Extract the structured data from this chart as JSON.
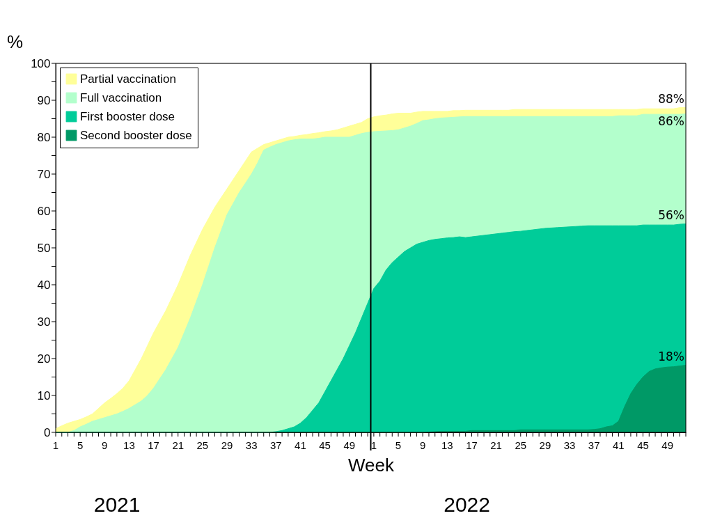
{
  "chart_data": {
    "type": "area",
    "xlabel": "Week",
    "ylabel": "%",
    "categories": [
      "1",
      null,
      null,
      null,
      "5",
      null,
      null,
      null,
      "9",
      null,
      null,
      null,
      "13",
      null,
      null,
      null,
      "17",
      null,
      null,
      null,
      "21",
      null,
      null,
      null,
      "25",
      null,
      null,
      null,
      "29",
      null,
      null,
      null,
      "33",
      null,
      null,
      null,
      "37",
      null,
      null,
      null,
      "41",
      null,
      null,
      null,
      "45",
      null,
      null,
      null,
      "49",
      null,
      null,
      null,
      "1",
      null,
      null,
      null,
      "5",
      null,
      null,
      null,
      "9",
      null,
      null,
      null,
      "13",
      null,
      null,
      null,
      "17",
      null,
      null,
      null,
      "21",
      null,
      null,
      null,
      "25",
      null,
      null,
      null,
      "29",
      null,
      null,
      null,
      "33",
      null,
      null,
      null,
      "37",
      null,
      null,
      null,
      "41",
      null,
      null,
      null,
      "45",
      null,
      null,
      null,
      "49",
      null,
      null,
      null
    ],
    "series": [
      {
        "name": "Partial vaccination",
        "color": "#ffff99",
        "values": [
          1,
          1.8,
          2.5,
          3,
          3.5,
          4.2,
          5,
          6.5,
          8,
          9.2,
          10.5,
          12,
          14,
          17,
          20,
          23.5,
          27,
          30,
          33,
          36.5,
          40,
          44,
          48,
          51.5,
          55,
          58,
          61,
          63.5,
          66,
          68.5,
          71,
          73.5,
          76,
          77,
          78,
          78.5,
          79,
          79.5,
          80,
          80.2,
          80.5,
          80.7,
          81,
          81.2,
          81.5,
          81.7,
          82,
          82.5,
          83,
          83.5,
          84,
          85,
          85.5,
          85.8,
          86,
          86.3,
          86.5,
          86.5,
          86.5,
          86.8,
          87,
          87,
          87,
          87,
          87,
          87.2,
          87.2,
          87.3,
          87.3,
          87.3,
          87.3,
          87.3,
          87.3,
          87.3,
          87.3,
          87.5,
          87.5,
          87.5,
          87.5,
          87.5,
          87.5,
          87.5,
          87.5,
          87.5,
          87.5,
          87.5,
          87.5,
          87.5,
          87.5,
          87.5,
          87.5,
          87.5,
          87.5,
          87.5,
          87.5,
          87.5,
          87.7,
          87.7,
          87.7,
          87.7,
          87.7,
          87.7,
          88,
          88
        ]
      },
      {
        "name": "Full vaccination",
        "color": "#b3ffcc",
        "values": [
          0,
          0,
          0,
          0.5,
          1.5,
          2.2,
          3,
          3.5,
          4,
          4.5,
          5,
          5.7,
          6.5,
          7.5,
          8.5,
          10,
          12,
          14.5,
          17,
          20,
          23,
          27,
          31,
          35.5,
          40,
          45,
          50,
          54.5,
          59,
          62,
          65,
          67.5,
          70,
          73,
          76.5,
          77.3,
          78,
          78.5,
          79,
          79.3,
          79.5,
          79.5,
          79.5,
          79.7,
          80,
          80,
          80,
          80,
          80,
          80.5,
          81,
          81.3,
          81.5,
          81.6,
          81.7,
          81.8,
          82,
          82.5,
          83,
          83.7,
          84.5,
          84.7,
          85,
          85.2,
          85.3,
          85.4,
          85.5,
          85.6,
          85.6,
          85.6,
          85.6,
          85.6,
          85.6,
          85.6,
          85.6,
          85.6,
          85.6,
          85.6,
          85.6,
          85.6,
          85.6,
          85.6,
          85.6,
          85.6,
          85.6,
          85.6,
          85.6,
          85.6,
          85.6,
          85.6,
          85.6,
          85.6,
          85.8,
          85.8,
          85.8,
          85.8,
          86.2,
          86.2,
          86.2,
          86.2,
          86.2,
          86.2,
          86.2,
          86.3
        ]
      },
      {
        "name": "First booster dose",
        "color": "#00cc99",
        "values": [
          0,
          0,
          0,
          0,
          0,
          0,
          0,
          0,
          0,
          0,
          0,
          0,
          0,
          0,
          0,
          0,
          0,
          0,
          0,
          0,
          0,
          0,
          0,
          0,
          0,
          0,
          0,
          0,
          0,
          0,
          0,
          0,
          0,
          0,
          0,
          0,
          0.2,
          0.5,
          1,
          1.5,
          2.5,
          4,
          6,
          8,
          11,
          14,
          17,
          20,
          23.5,
          27,
          31,
          35,
          39,
          41,
          44,
          46,
          47.5,
          49,
          50,
          51,
          51.5,
          52,
          52.3,
          52.5,
          52.7,
          52.8,
          53,
          52.8,
          53,
          53.2,
          53.4,
          53.6,
          53.8,
          54,
          54.2,
          54.4,
          54.5,
          54.7,
          54.9,
          55.1,
          55.3,
          55.4,
          55.5,
          55.6,
          55.7,
          55.8,
          55.9,
          56,
          56,
          56,
          56,
          56,
          56,
          56,
          56,
          56,
          56.2,
          56.2,
          56.2,
          56.2,
          56.2,
          56.2,
          56.4,
          56.5
        ]
      },
      {
        "name": "Second booster dose",
        "color": "#009966",
        "values": [
          0,
          0,
          0,
          0,
          0,
          0,
          0,
          0,
          0,
          0,
          0,
          0,
          0,
          0,
          0,
          0,
          0,
          0,
          0,
          0,
          0,
          0,
          0,
          0,
          0,
          0,
          0,
          0,
          0,
          0,
          0,
          0,
          0,
          0,
          0,
          0,
          0,
          0,
          0,
          0,
          0,
          0,
          0,
          0,
          0,
          0,
          0,
          0,
          0,
          0,
          0,
          0,
          0,
          0,
          0,
          0,
          0,
          0,
          0,
          0,
          0,
          0.1,
          0.2,
          0.3,
          0.3,
          0.3,
          0.3,
          0.3,
          0.5,
          0.5,
          0.5,
          0.5,
          0.5,
          0.5,
          0.5,
          0.5,
          0.7,
          0.7,
          0.7,
          0.7,
          0.7,
          0.7,
          0.7,
          0.7,
          0.7,
          0.7,
          0.7,
          0.7,
          0.8,
          1,
          1.5,
          1.8,
          3,
          7,
          10.5,
          13,
          15,
          16.5,
          17.2,
          17.5,
          17.7,
          17.8,
          18,
          18.2
        ]
      }
    ],
    "ylim": [
      0,
      100
    ],
    "yticks": [
      0,
      {
        "value": 5,
        "label": null
      },
      10,
      {
        "value": 15,
        "label": null
      },
      20,
      {
        "value": 25,
        "label": null
      },
      30,
      {
        "value": 35,
        "label": null
      },
      40,
      {
        "value": 45,
        "label": null
      },
      50,
      {
        "value": 55,
        "label": null
      },
      60,
      {
        "value": 65,
        "label": null
      },
      70,
      {
        "value": 75,
        "label": null
      },
      80,
      {
        "value": 85,
        "label": null
      },
      90,
      {
        "value": 95,
        "label": null
      },
      100
    ],
    "ref_lines": [
      {
        "axis": "x",
        "value": "1",
        "color": "#000000"
      }
    ],
    "annotations": [
      {
        "text": "88%",
        "y": 88
      },
      {
        "text": "86%",
        "y": 86.3
      },
      {
        "text": "56%",
        "y": 56.5
      },
      {
        "text": "18%",
        "y": 18.2
      },
      "2021",
      "2022"
    ],
    "grid": false,
    "legend": "top left"
  }
}
